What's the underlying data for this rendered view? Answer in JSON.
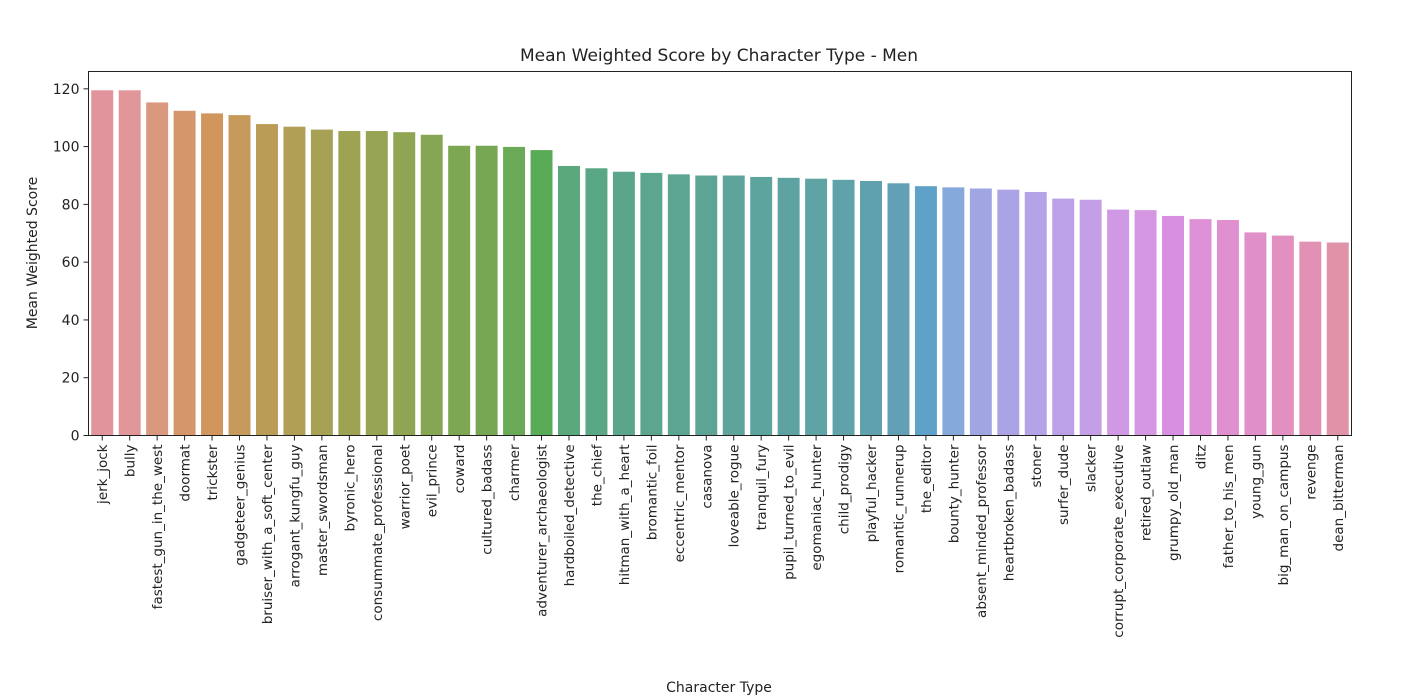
{
  "chart_data": {
    "type": "bar",
    "title": "Mean Weighted Score by Character Type - Men",
    "xlabel": "Character Type",
    "ylabel": "Mean Weighted Score",
    "ylim": [
      0,
      126
    ],
    "yticks": [
      0,
      20,
      40,
      60,
      80,
      100,
      120
    ],
    "grid": false,
    "categories": [
      "jerk_jock",
      "bully",
      "fastest_gun_in_the_west",
      "doormat",
      "trickster",
      "gadgeteer_genius",
      "bruiser_with_a_soft_center",
      "arrogant_kungfu_guy",
      "master_swordsman",
      "byronic_hero",
      "consummate_professional",
      "warrior_poet",
      "evil_prince",
      "coward",
      "cultured_badass",
      "charmer",
      "adventurer_archaeologist",
      "hardboiled_detective",
      "the_chief",
      "hitman_with_a_heart",
      "bromantic_foil",
      "eccentric_mentor",
      "casanova",
      "loveable_rogue",
      "tranquil_fury",
      "pupil_turned_to_evil",
      "egomaniac_hunter",
      "child_prodigy",
      "playful_hacker",
      "romantic_runnerup",
      "the_editor",
      "bounty_hunter",
      "absent_minded_professor",
      "heartbroken_badass",
      "stoner",
      "surfer_dude",
      "slacker",
      "corrupt_corporate_executive",
      "retired_outlaw",
      "grumpy_old_man",
      "ditz",
      "father_to_his_men",
      "young_gun",
      "big_man_on_campus",
      "revenge",
      "dean_bitterman"
    ],
    "values": [
      119.5,
      119.5,
      115.3,
      112.4,
      111.5,
      110.9,
      107.8,
      106.9,
      105.9,
      105.4,
      105.4,
      105.0,
      104.1,
      100.3,
      100.3,
      99.9,
      98.8,
      93.3,
      92.5,
      91.3,
      90.9,
      90.4,
      90.0,
      90.0,
      89.5,
      89.2,
      88.9,
      88.5,
      88.1,
      87.3,
      86.3,
      85.9,
      85.5,
      85.1,
      84.3,
      82.0,
      81.6,
      78.2,
      78.0,
      76.0,
      74.9,
      74.6,
      70.3,
      69.2,
      67.1,
      66.8
    ],
    "colors": [
      "#e1949b",
      "#e1969a",
      "#da997f",
      "#d4966a",
      "#d1955e",
      "#c69a5a",
      "#bb9c56",
      "#b09f54",
      "#a6a154",
      "#9ea353",
      "#97a453",
      "#90a553",
      "#87a653",
      "#7ea754",
      "#76a854",
      "#6aa955",
      "#59ab58",
      "#5aa87b",
      "#5aa785",
      "#5ba68b",
      "#5ca68f",
      "#5da593",
      "#5da497",
      "#5ea49b",
      "#5ea49e",
      "#5ea3a2",
      "#5fa3a5",
      "#5fa2a9",
      "#60a1ae",
      "#61a0b5",
      "#60a1c9",
      "#86a9dc",
      "#9fa6e1",
      "#aba4e4",
      "#b5a3e7",
      "#bda1e8",
      "#c59fe6",
      "#cf99e4",
      "#d596e2",
      "#d98fe1",
      "#de91d7",
      "#e08fd0",
      "#e18fc8",
      "#e190bf",
      "#e192b4",
      "#e093a8"
    ]
  }
}
